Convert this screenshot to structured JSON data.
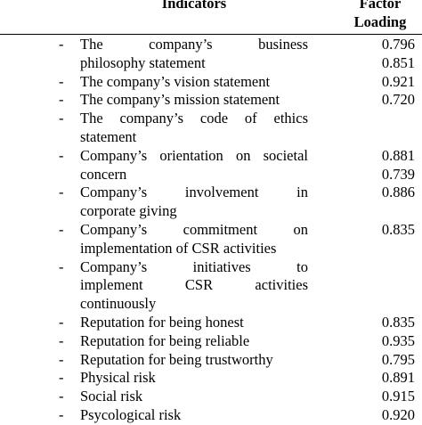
{
  "header": {
    "indicators": "Indicators",
    "factor_line1": "Factor",
    "factor_line2": "Loading"
  },
  "rows": [
    {
      "bullet": "-",
      "lines": [
        "The company’s business",
        "philosophy statement"
      ],
      "values": [
        "0.796",
        "0.851"
      ]
    },
    {
      "bullet": "-",
      "lines": [
        "The company’s vision statement"
      ],
      "values": [
        "0.921"
      ]
    },
    {
      "bullet": "-",
      "lines": [
        "The company’s mission statement"
      ],
      "values": [
        "0.720"
      ]
    },
    {
      "bullet": "-",
      "lines": [
        "The company’s code of ethics",
        "statement"
      ],
      "values": [
        "",
        ""
      ]
    },
    {
      "bullet": "-",
      "lines": [
        "Company’s orientation on societal",
        "concern"
      ],
      "values": [
        "0.881",
        "0.739"
      ]
    },
    {
      "bullet": "-",
      "lines": [
        "Company’s involvement in",
        "corporate giving"
      ],
      "values": [
        "0.886",
        ""
      ]
    },
    {
      "bullet": "-",
      "lines": [
        "Company’s commitment on",
        "implementation of CSR activities"
      ],
      "values": [
        "0.835",
        ""
      ]
    },
    {
      "bullet": "-",
      "lines": [
        "Company’s initiatives to",
        "implement CSR activities",
        "continuously"
      ],
      "values": [
        "",
        "",
        ""
      ]
    },
    {
      "bullet": "-",
      "lines": [
        "Reputation for being honest"
      ],
      "values": [
        "0.835"
      ]
    },
    {
      "bullet": "-",
      "lines": [
        "Reputation for being reliable"
      ],
      "values": [
        "0.935"
      ]
    },
    {
      "bullet": "-",
      "lines": [
        "Reputation for being trustworthy"
      ],
      "values": [
        "0.795"
      ]
    },
    {
      "bullet": "-",
      "lines": [
        "Physical risk"
      ],
      "values": [
        "0.891"
      ]
    },
    {
      "bullet": "-",
      "lines": [
        "Social risk"
      ],
      "values": [
        "0.915"
      ]
    },
    {
      "bullet": "-",
      "lines": [
        "Psycological risk"
      ],
      "values": [
        "0.920"
      ]
    }
  ]
}
